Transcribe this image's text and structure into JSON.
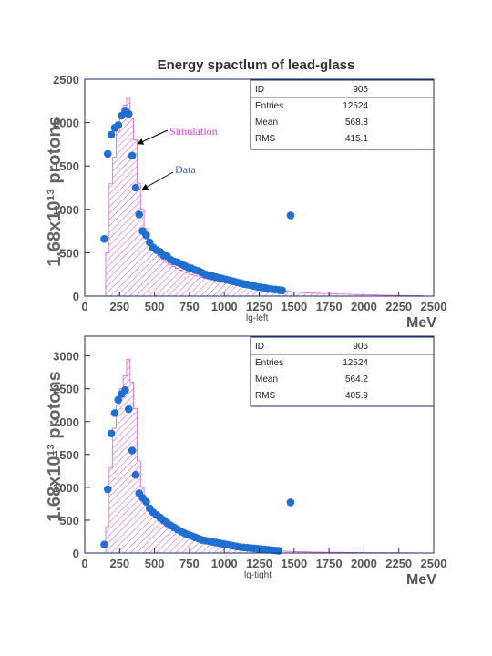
{
  "title": "Energy spactlum of lead-glass",
  "colors": {
    "simulation": "#e060d0",
    "data": "#1f6fd0",
    "frame": "#1a2a6a"
  },
  "chart_data": [
    {
      "type": "bar",
      "name": "lg-left",
      "x_unit": "MeV",
      "ylabel": "1.68x10¹³ protons",
      "xlim": [
        0,
        2500
      ],
      "ylim": [
        0,
        2500
      ],
      "x_ticks": [
        0,
        250,
        500,
        750,
        1000,
        1250,
        1500,
        1750,
        2000,
        2250,
        2500
      ],
      "y_ticks": [
        0,
        500,
        1000,
        1500,
        2000,
        2500
      ],
      "stats": [
        {
          "label": "ID",
          "value": "905"
        },
        {
          "label": "Entries",
          "value": "12524"
        },
        {
          "label": "Mean",
          "value": "568.8"
        },
        {
          "label": "RMS",
          "value": "415.1"
        }
      ],
      "annotations": {
        "simulation": "Simulation",
        "data": "Data"
      },
      "sim_bin_width": 25,
      "sim_x": [
        150,
        175,
        200,
        225,
        250,
        275,
        300,
        325,
        350,
        375,
        400,
        425,
        450,
        475,
        500,
        525,
        550,
        575,
        600,
        625,
        650,
        675,
        700,
        725,
        750,
        775,
        800,
        825,
        850,
        875,
        900,
        925,
        950,
        975,
        1000,
        1025,
        1050,
        1075,
        1100,
        1125,
        1150,
        1175,
        1200,
        1225,
        1250,
        1275,
        1300,
        1325,
        1350,
        1375,
        1400,
        1425,
        1450,
        1475,
        1500,
        1550,
        1600,
        1650,
        1700,
        1750,
        1800,
        1850,
        1900,
        1950,
        2000,
        2050,
        2100,
        2150,
        2200,
        2250,
        2300,
        2350,
        2400
      ],
      "sim_y": [
        500,
        1300,
        1600,
        1900,
        2050,
        2200,
        2280,
        2050,
        1800,
        1300,
        1000,
        780,
        640,
        560,
        500,
        450,
        420,
        390,
        360,
        340,
        320,
        300,
        280,
        265,
        250,
        240,
        230,
        215,
        205,
        195,
        185,
        175,
        165,
        160,
        150,
        145,
        138,
        130,
        125,
        120,
        115,
        110,
        105,
        100,
        95,
        90,
        85,
        80,
        75,
        70,
        65,
        60,
        55,
        50,
        45,
        40,
        35,
        32,
        30,
        28,
        25,
        22,
        20,
        18,
        16,
        14,
        12,
        10,
        9,
        8,
        7,
        6,
        5
      ],
      "data_x": [
        140,
        165,
        190,
        215,
        240,
        265,
        290,
        315,
        340,
        365,
        390,
        415,
        440,
        465,
        490,
        515,
        540,
        565,
        590,
        615,
        640,
        665,
        690,
        715,
        740,
        765,
        790,
        815,
        840,
        865,
        890,
        915,
        940,
        965,
        990,
        1015,
        1040,
        1065,
        1090,
        1115,
        1140,
        1165,
        1190,
        1215,
        1240,
        1265,
        1290,
        1315,
        1340,
        1365,
        1390,
        1415,
        1475
      ],
      "data_y": [
        660,
        1640,
        1860,
        1940,
        1970,
        2080,
        2140,
        2100,
        1620,
        1250,
        940,
        750,
        700,
        620,
        560,
        530,
        510,
        470,
        460,
        420,
        400,
        390,
        370,
        350,
        330,
        320,
        300,
        290,
        270,
        250,
        240,
        230,
        220,
        210,
        200,
        190,
        180,
        170,
        160,
        150,
        140,
        135,
        125,
        115,
        105,
        100,
        95,
        85,
        80,
        75,
        70,
        65,
        930
      ]
    },
    {
      "type": "bar",
      "name": "lg-tight",
      "x_unit": "MeV",
      "ylabel": "1.68x10¹³ protons",
      "xlim": [
        0,
        2500
      ],
      "ylim": [
        0,
        3300
      ],
      "x_ticks": [
        0,
        250,
        500,
        750,
        1000,
        1250,
        1500,
        1750,
        2000,
        2250,
        2500
      ],
      "y_ticks": [
        0,
        500,
        1000,
        1500,
        2000,
        2500,
        3000
      ],
      "stats": [
        {
          "label": "ID",
          "value": "906"
        },
        {
          "label": "Entries",
          "value": "12524"
        },
        {
          "label": "Mean",
          "value": "564.2"
        },
        {
          "label": "RMS",
          "value": "405.9"
        }
      ],
      "sim_bin_width": 25,
      "sim_x": [
        150,
        175,
        200,
        225,
        250,
        275,
        300,
        325,
        350,
        375,
        400,
        425,
        450,
        475,
        500,
        525,
        550,
        575,
        600,
        625,
        650,
        675,
        700,
        725,
        750,
        775,
        800,
        825,
        850,
        875,
        900,
        925,
        950,
        975,
        1000,
        1025,
        1050,
        1075,
        1100,
        1125,
        1150,
        1175,
        1200,
        1225,
        1250,
        1275,
        1300,
        1325,
        1350,
        1375,
        1400,
        1425,
        1450,
        1475,
        1500,
        1550,
        1600,
        1650,
        1700,
        1750,
        1800,
        1850,
        1900,
        1950,
        2000,
        2050,
        2100,
        2150,
        2200,
        2250,
        2300,
        2350,
        2400
      ],
      "sim_y": [
        400,
        1300,
        1900,
        2250,
        2500,
        2700,
        2950,
        2600,
        2200,
        1400,
        1000,
        830,
        700,
        600,
        530,
        480,
        440,
        400,
        370,
        340,
        310,
        290,
        270,
        250,
        230,
        215,
        200,
        185,
        170,
        160,
        150,
        140,
        130,
        120,
        112,
        105,
        98,
        90,
        85,
        80,
        75,
        70,
        65,
        60,
        55,
        50,
        46,
        42,
        38,
        34,
        30,
        28,
        25,
        22,
        20,
        18,
        15,
        13,
        12,
        11,
        10,
        9,
        8,
        7,
        6,
        5,
        5,
        4,
        4,
        3,
        3,
        2,
        2
      ],
      "data_x": [
        140,
        165,
        190,
        215,
        240,
        265,
        290,
        315,
        340,
        365,
        390,
        415,
        440,
        465,
        490,
        515,
        540,
        565,
        590,
        615,
        640,
        665,
        690,
        715,
        740,
        765,
        790,
        815,
        840,
        865,
        890,
        915,
        940,
        965,
        990,
        1015,
        1040,
        1065,
        1090,
        1115,
        1140,
        1165,
        1190,
        1215,
        1240,
        1265,
        1290,
        1315,
        1340,
        1365,
        1390,
        1475
      ],
      "data_y": [
        130,
        970,
        1820,
        2130,
        2330,
        2420,
        2480,
        2190,
        1560,
        1190,
        910,
        840,
        780,
        680,
        620,
        580,
        540,
        500,
        460,
        420,
        390,
        360,
        330,
        300,
        280,
        260,
        240,
        220,
        200,
        190,
        180,
        170,
        160,
        150,
        140,
        130,
        120,
        110,
        100,
        90,
        85,
        80,
        75,
        70,
        65,
        60,
        55,
        50,
        45,
        40,
        35,
        770
      ]
    }
  ]
}
